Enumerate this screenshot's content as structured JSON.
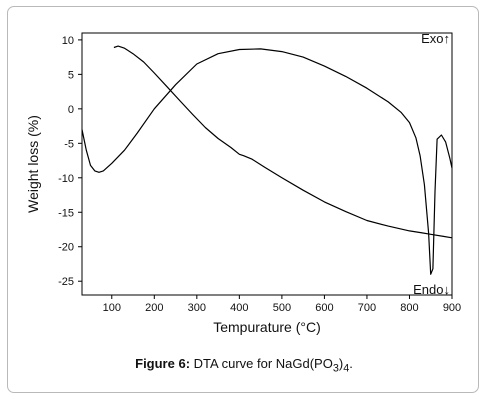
{
  "chart_data": {
    "type": "line",
    "xlabel": "Tempurature (°C)",
    "ylabel": "Weight loss (%)",
    "xlim": [
      30,
      900
    ],
    "ylim": [
      -27,
      11
    ],
    "x_ticks": [
      100,
      200,
      300,
      400,
      500,
      600,
      700,
      800,
      900
    ],
    "y_ticks": [
      10,
      5,
      0,
      -5,
      -10,
      -15,
      -20,
      -25
    ],
    "annotations": [
      "Exo↑",
      "Endo↓"
    ],
    "grid": false,
    "legend": "none",
    "series": [
      {
        "x": [
          105,
          115,
          130,
          150,
          175,
          200,
          230,
          260,
          290,
          320,
          350,
          380,
          400,
          410,
          430,
          460,
          500,
          550,
          600,
          650,
          700,
          750,
          800,
          830,
          850,
          880,
          900
        ],
        "y": [
          8.9,
          9.1,
          8.8,
          8.0,
          6.8,
          5.2,
          3.2,
          1.2,
          -0.8,
          -2.7,
          -4.3,
          -5.6,
          -6.6,
          -6.8,
          -7.3,
          -8.5,
          -10.0,
          -11.8,
          -13.5,
          -14.9,
          -16.2,
          -17.0,
          -17.7,
          -18.0,
          -18.2,
          -18.5,
          -18.7
        ]
      },
      {
        "x": [
          30,
          40,
          50,
          60,
          70,
          80,
          100,
          130,
          160,
          200,
          250,
          300,
          350,
          400,
          450,
          500,
          550,
          600,
          650,
          700,
          750,
          780,
          800,
          815,
          825,
          835,
          845,
          850,
          855,
          860,
          865,
          875,
          885,
          895,
          900
        ],
        "y": [
          -3.0,
          -6.0,
          -8.2,
          -9.0,
          -9.2,
          -9.0,
          -7.9,
          -6.0,
          -3.5,
          0.0,
          3.5,
          6.5,
          8.0,
          8.6,
          8.7,
          8.3,
          7.5,
          6.2,
          4.7,
          3.0,
          1.0,
          -0.5,
          -2.0,
          -4.2,
          -6.8,
          -11.0,
          -18.0,
          -24.0,
          -23.2,
          -12.0,
          -4.4,
          -3.8,
          -4.8,
          -7.2,
          -8.6
        ]
      }
    ]
  },
  "caption": {
    "label": "Figure 6:",
    "text_main": "DTA curve for NaGd(PO",
    "sub1": "3",
    "mid": ")",
    "sub2": "4",
    "end": "."
  }
}
